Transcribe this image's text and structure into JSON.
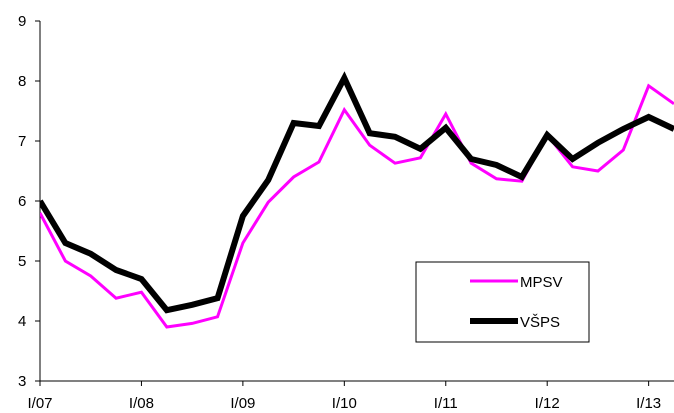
{
  "chart_data": {
    "type": "line",
    "title": "",
    "xlabel": "",
    "ylabel": "",
    "ylim": [
      3,
      9
    ],
    "yticks": [
      3,
      4,
      5,
      6,
      7,
      8,
      9
    ],
    "x_tick_labels": [
      "I/07",
      "I/08",
      "I/09",
      "I/10",
      "I/11",
      "I/12",
      "I/13"
    ],
    "x_tick_positions": [
      0,
      4,
      8,
      12,
      16,
      20,
      24
    ],
    "x_range": [
      0,
      25
    ],
    "grid": false,
    "legend": "bottom-right",
    "series": [
      {
        "name": "MPSV",
        "color": "#ff00ff",
        "values": [
          5.8,
          5.0,
          4.75,
          4.38,
          4.48,
          3.9,
          3.96,
          4.07,
          5.3,
          5.98,
          6.4,
          6.65,
          7.52,
          6.93,
          6.63,
          6.72,
          7.45,
          6.63,
          6.37,
          6.33,
          7.1,
          6.57,
          6.5,
          6.85,
          7.92,
          7.62
        ]
      },
      {
        "name": "VŠPS",
        "color": "#000000",
        "values": [
          6.0,
          5.3,
          5.12,
          4.85,
          4.7,
          4.18,
          4.27,
          4.38,
          5.75,
          6.35,
          7.3,
          7.25,
          8.05,
          7.13,
          7.07,
          6.87,
          7.22,
          6.7,
          6.6,
          6.4,
          7.1,
          6.7,
          6.97,
          7.2,
          7.4,
          7.2
        ]
      }
    ]
  }
}
